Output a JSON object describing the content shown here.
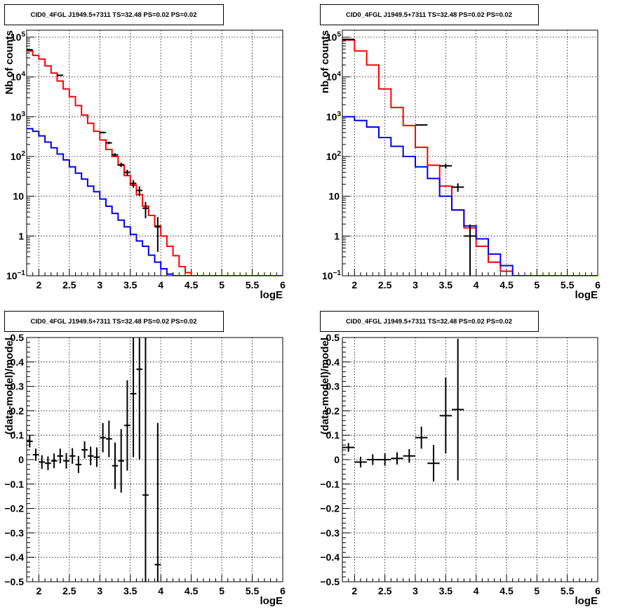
{
  "chart_data": [
    {
      "type": "line",
      "title": "CID0_4FGL J1949.5+7311 TS=32.48 PS=0.02 PS=0.02",
      "xlabel": "logE",
      "ylabel": "Nb of counts",
      "xlim": [
        1.8,
        6.0
      ],
      "ylim": [
        0.1,
        150000
      ],
      "log_y": true,
      "grid": true,
      "xticks": [
        2,
        2.5,
        3,
        3.5,
        4,
        4.5,
        5,
        5.5,
        6
      ],
      "yticks": [
        {
          "v": 0.1,
          "label": "10",
          "sup": "−1"
        },
        {
          "v": 1,
          "label": "1",
          "sup": ""
        },
        {
          "v": 10,
          "label": "10",
          "sup": ""
        },
        {
          "v": 100,
          "label": "10",
          "sup": "2"
        },
        {
          "v": 1000,
          "label": "10",
          "sup": "3"
        },
        {
          "v": 10000,
          "label": "10",
          "sup": "4"
        },
        {
          "v": 100000,
          "label": "10",
          "sup": "5"
        }
      ],
      "binwidth": 0.1,
      "series": [
        {
          "color": "#ff0000",
          "style": "hist",
          "x": [
            1.85,
            1.95,
            2.05,
            2.15,
            2.25,
            2.35,
            2.45,
            2.55,
            2.65,
            2.75,
            2.85,
            2.95,
            3.05,
            3.15,
            3.25,
            3.35,
            3.45,
            3.55,
            3.65,
            3.75,
            3.85,
            3.95,
            4.05,
            4.15,
            4.25,
            4.35,
            4.45,
            4.55,
            4.65,
            4.75,
            4.85,
            4.95,
            5.05,
            5.15,
            5.25,
            5.35,
            5.45,
            5.55,
            5.65,
            5.75,
            5.85,
            5.95
          ],
          "values": [
            45000,
            35000,
            28000,
            19000,
            12500,
            7900,
            5000,
            3200,
            1900,
            1100,
            680,
            430,
            260,
            150,
            100,
            60,
            33,
            19,
            11,
            5.6,
            3.3,
            1.8,
            1.0,
            0.55,
            0.32,
            0.17,
            0.12,
            0.1,
            0.1,
            0.1,
            0.1,
            0.1,
            0.1,
            0.1,
            0.1,
            0.1,
            0.1,
            0.1,
            0.1,
            0.1,
            0.1,
            0.1
          ]
        },
        {
          "color": "#0000ee",
          "style": "hist",
          "x": [
            1.85,
            1.95,
            2.05,
            2.15,
            2.25,
            2.35,
            2.45,
            2.55,
            2.65,
            2.75,
            2.85,
            2.95,
            3.05,
            3.15,
            3.25,
            3.35,
            3.45,
            3.55,
            3.65,
            3.75,
            3.85,
            3.95,
            4.05,
            4.15,
            4.25,
            4.35,
            4.45,
            4.55,
            4.65,
            4.75,
            4.85,
            4.95,
            5.05,
            5.15,
            5.25,
            5.35,
            5.45,
            5.55,
            5.65,
            5.75,
            5.85,
            5.95
          ],
          "values": [
            500,
            430,
            330,
            230,
            165,
            115,
            82,
            55,
            38,
            27,
            18,
            13,
            8.5,
            5.6,
            3.7,
            2.5,
            1.7,
            1.1,
            0.75,
            0.55,
            0.33,
            0.22,
            0.15,
            0.11,
            0.1,
            0.1,
            0.1,
            0.1,
            0.1,
            0.1,
            0.1,
            0.1,
            0.1,
            0.1,
            0.1,
            0.1,
            0.1,
            0.1,
            0.1,
            0.1,
            0.1,
            0.1
          ]
        },
        {
          "color": "#000000",
          "style": "errors",
          "halfwidth": 0.05,
          "points": [
            [
              1.85,
              48000,
              220
            ],
            [
              2.35,
              11000,
              105
            ],
            [
              3.05,
              400,
              20
            ],
            [
              3.15,
              220,
              15
            ],
            [
              3.25,
              110,
              10.5
            ],
            [
              3.35,
              62,
              8
            ],
            [
              3.45,
              40,
              6.3
            ],
            [
              3.55,
              21,
              4.6
            ],
            [
              3.65,
              14,
              3.7
            ],
            [
              3.75,
              5,
              2.2
            ],
            [
              3.95,
              1.7,
              1.3
            ]
          ]
        }
      ]
    },
    {
      "type": "line",
      "title": "CID0_4FGL J1949.5+7311 TS=32.48 PS=0.02 PS=0.02",
      "xlabel": "logE",
      "ylabel": "nb of counts",
      "xlim": [
        1.8,
        6.0
      ],
      "ylim": [
        0.1,
        150000
      ],
      "log_y": true,
      "grid": true,
      "xticks": [
        2,
        2.5,
        3,
        3.5,
        4,
        4.5,
        5,
        5.5,
        6
      ],
      "yticks": [
        {
          "v": 0.1,
          "label": "10",
          "sup": "−1"
        },
        {
          "v": 1,
          "label": "1",
          "sup": ""
        },
        {
          "v": 10,
          "label": "10",
          "sup": ""
        },
        {
          "v": 100,
          "label": "10",
          "sup": "2"
        },
        {
          "v": 1000,
          "label": "10",
          "sup": "3"
        },
        {
          "v": 10000,
          "label": "10",
          "sup": "4"
        },
        {
          "v": 100000,
          "label": "10",
          "sup": "5"
        }
      ],
      "binwidth": 0.2,
      "series": [
        {
          "color": "#ff0000",
          "style": "hist",
          "x": [
            1.9,
            2.1,
            2.3,
            2.5,
            2.7,
            2.9,
            3.1,
            3.3,
            3.5,
            3.7,
            3.9,
            4.1,
            4.3,
            4.5,
            4.7,
            4.9,
            5.1,
            5.3,
            5.5,
            5.7,
            5.9
          ],
          "values": [
            85000,
            45000,
            20000,
            5000,
            1700,
            600,
            170,
            60,
            18,
            4.5,
            1.6,
            0.55,
            0.22,
            0.13,
            0.1,
            0.1,
            0.1,
            0.1,
            0.1,
            0.1,
            0.1
          ]
        },
        {
          "color": "#0000ee",
          "style": "hist",
          "x": [
            1.9,
            2.1,
            2.3,
            2.5,
            2.7,
            2.9,
            3.1,
            3.3,
            3.5,
            3.7,
            3.9,
            4.1,
            4.3,
            4.5,
            4.7,
            4.9,
            5.1,
            5.3,
            5.5,
            5.7,
            5.9
          ],
          "values": [
            1000,
            800,
            550,
            300,
            180,
            100,
            55,
            28,
            10,
            4.5,
            1.8,
            0.85,
            0.35,
            0.18,
            0.1,
            0.1,
            0.1,
            0.1,
            0.1,
            0.1,
            0.1
          ]
        },
        {
          "color": "#000000",
          "style": "errors",
          "halfwidth": 0.1,
          "points": [
            [
              1.9,
              88000,
              300
            ],
            [
              3.1,
              620,
              25
            ],
            [
              3.5,
              58,
              7.6
            ],
            [
              3.7,
              17,
              4.1
            ],
            [
              3.9,
              1.0,
              0.95
            ]
          ]
        }
      ]
    },
    {
      "type": "scatter",
      "title": "CID0_4FGL J1949.5+7311 TS=32.48 PS=0.02 PS=0.02",
      "xlabel": "logE",
      "ylabel": "(data-model)/model",
      "xlim": [
        1.8,
        6.0
      ],
      "ylim": [
        -0.5,
        0.5
      ],
      "log_y": false,
      "grid": true,
      "xticks": [
        2,
        2.5,
        3,
        3.5,
        4,
        4.5,
        5,
        5.5,
        6
      ],
      "yticks": [
        {
          "v": -0.5,
          "label": "−0.5"
        },
        {
          "v": -0.4,
          "label": "−0.4"
        },
        {
          "v": -0.3,
          "label": "−0.3"
        },
        {
          "v": -0.2,
          "label": "−0.2"
        },
        {
          "v": -0.1,
          "label": "−0.1"
        },
        {
          "v": 0,
          "label": "0"
        },
        {
          "v": 0.1,
          "label": "0.1"
        },
        {
          "v": 0.2,
          "label": "0.2"
        },
        {
          "v": 0.3,
          "label": "0.3"
        },
        {
          "v": 0.4,
          "label": "0.4"
        },
        {
          "v": 0.5,
          "label": "0.5"
        }
      ],
      "series": [
        {
          "color": "#000000",
          "style": "errors",
          "halfwidth": 0.05,
          "points": [
            [
              1.85,
              0.075,
              0.025
            ],
            [
              1.95,
              0.02,
              0.025
            ],
            [
              2.05,
              -0.01,
              0.028
            ],
            [
              2.15,
              -0.015,
              0.028
            ],
            [
              2.25,
              -0.005,
              0.03
            ],
            [
              2.35,
              0.015,
              0.03
            ],
            [
              2.45,
              -0.005,
              0.032
            ],
            [
              2.55,
              0.015,
              0.032
            ],
            [
              2.65,
              -0.02,
              0.035
            ],
            [
              2.75,
              0.04,
              0.035
            ],
            [
              2.85,
              0.015,
              0.038
            ],
            [
              2.95,
              0.01,
              0.04
            ],
            [
              3.05,
              0.09,
              0.06
            ],
            [
              3.15,
              0.085,
              0.075
            ],
            [
              3.25,
              -0.025,
              0.095
            ],
            [
              3.35,
              -0.005,
              0.13
            ],
            [
              3.45,
              0.14,
              0.185
            ],
            [
              3.55,
              0.27,
              0.26
            ],
            [
              3.65,
              0.37,
              0.37
            ],
            [
              3.75,
              -0.145,
              0.65
            ],
            [
              3.95,
              -0.43,
              0.58
            ]
          ]
        }
      ]
    },
    {
      "type": "scatter",
      "title": "CID0_4FGL J1949.5+7311 TS=32.48 PS=0.02 PS=0.02",
      "xlabel": "logE",
      "ylabel": "(data-model)/model",
      "xlim": [
        1.8,
        6.0
      ],
      "ylim": [
        -0.5,
        0.5
      ],
      "log_y": false,
      "grid": true,
      "xticks": [
        2,
        2.5,
        3,
        3.5,
        4,
        4.5,
        5,
        5.5,
        6
      ],
      "yticks": [
        {
          "v": -0.5,
          "label": "−0.5"
        },
        {
          "v": -0.4,
          "label": "−0.4"
        },
        {
          "v": -0.3,
          "label": "−0.3"
        },
        {
          "v": -0.2,
          "label": "−0.2"
        },
        {
          "v": -0.1,
          "label": "−0.1"
        },
        {
          "v": 0,
          "label": "0"
        },
        {
          "v": 0.1,
          "label": "0.1"
        },
        {
          "v": 0.2,
          "label": "0.2"
        },
        {
          "v": 0.3,
          "label": "0.3"
        },
        {
          "v": 0.4,
          "label": "0.4"
        },
        {
          "v": 0.5,
          "label": "0.5"
        }
      ],
      "series": [
        {
          "color": "#000000",
          "style": "errors",
          "halfwidth": 0.1,
          "points": [
            [
              1.9,
              0.05,
              0.018
            ],
            [
              2.1,
              -0.01,
              0.022
            ],
            [
              2.3,
              0.0,
              0.022
            ],
            [
              2.5,
              0.0,
              0.025
            ],
            [
              2.7,
              0.005,
              0.025
            ],
            [
              2.9,
              0.015,
              0.028
            ],
            [
              3.1,
              0.09,
              0.045
            ],
            [
              3.3,
              -0.015,
              0.075
            ],
            [
              3.5,
              0.18,
              0.155
            ],
            [
              3.7,
              0.205,
              0.29
            ]
          ]
        }
      ]
    }
  ]
}
